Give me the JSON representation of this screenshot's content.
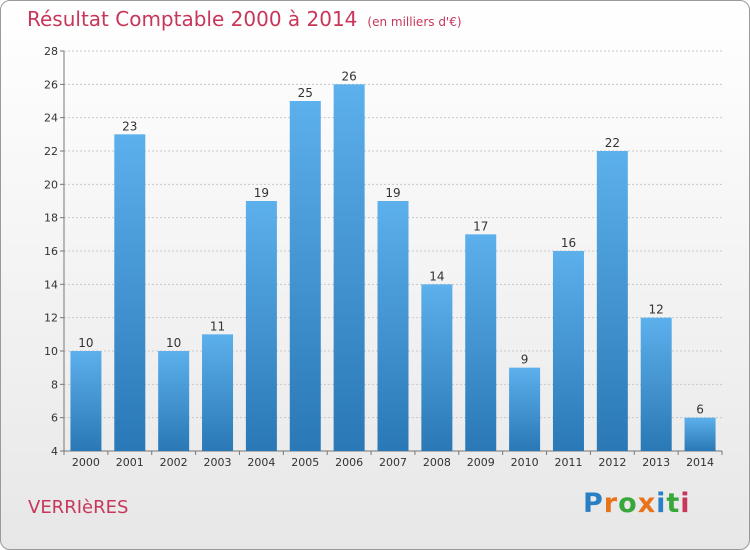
{
  "header": {
    "title": "Résultat Comptable 2000 à 2014",
    "subtitle": "(en milliers d'€)"
  },
  "commune": "VERRIèRES",
  "brand": {
    "name": "Proxiti",
    "letters": [
      "P",
      "r",
      "o",
      "x",
      "i",
      "t",
      "i"
    ],
    "colors": [
      "#2a7fc4",
      "#e8731a",
      "#39a83a",
      "#e8731a",
      "#2a7fc4",
      "#39a83a",
      "#c8365a"
    ]
  },
  "colors": {
    "bar_light": "#5cb0ec",
    "bar_dark": "#2a78b6",
    "title": "#c8365a",
    "grid": "#c8c8c8"
  },
  "chart_data": {
    "type": "bar",
    "title": "Résultat Comptable 2000 à 2014",
    "subtitle": "(en milliers d'€)",
    "xlabel": "",
    "ylabel": "",
    "categories": [
      "2000",
      "2001",
      "2002",
      "2003",
      "2004",
      "2005",
      "2006",
      "2007",
      "2008",
      "2009",
      "2010",
      "2011",
      "2012",
      "2013",
      "2014"
    ],
    "values": [
      10,
      23,
      10,
      11,
      19,
      25,
      26,
      19,
      14,
      17,
      9,
      16,
      22,
      12,
      6
    ],
    "ylim": [
      4,
      28
    ],
    "yticks": [
      4,
      6,
      8,
      10,
      12,
      14,
      16,
      18,
      20,
      22,
      24,
      26,
      28
    ],
    "grid": true,
    "legend": "none"
  }
}
